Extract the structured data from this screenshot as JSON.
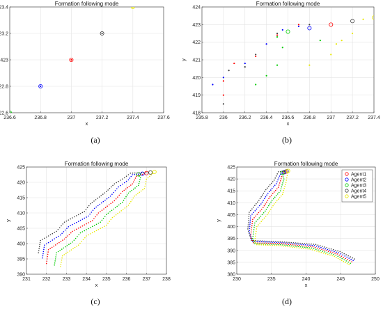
{
  "chart_data": [
    {
      "panel": "(a)",
      "type": "scatter",
      "title": "Formation following mode",
      "xlabel": "x",
      "ylabel": "y",
      "xlim": [
        236.6,
        237.6
      ],
      "ylim": [
        422.6,
        423.4
      ],
      "xticks": [
        236.6,
        236.8,
        237,
        237.2,
        237.4,
        237.6
      ],
      "yticks": [
        422.6,
        422.8,
        423,
        423.2,
        423.4
      ],
      "grid": true,
      "series": [
        {
          "color": "#ff0000",
          "points": [
            [
              237.0,
              423.0
            ]
          ]
        },
        {
          "color": "#0000ff",
          "points": [
            [
              236.8,
              422.8
            ]
          ]
        },
        {
          "color": "#00cc00",
          "points": [
            [
              236.6,
              422.6
            ]
          ]
        },
        {
          "color": "#404040",
          "points": [
            [
              237.2,
              423.2
            ]
          ]
        },
        {
          "color": "#e8e800",
          "points": [
            [
              237.4,
              423.4
            ]
          ]
        }
      ]
    },
    {
      "panel": "(b)",
      "type": "scatter",
      "title": "Formation following mode",
      "xlabel": "x",
      "ylabel": "y",
      "xlim": [
        235.8,
        237.4
      ],
      "ylim": [
        418,
        424
      ],
      "xticks": [
        235.8,
        236,
        236.2,
        236.4,
        236.6,
        236.8,
        237,
        237.2,
        237.4
      ],
      "yticks": [
        418,
        419,
        420,
        421,
        422,
        423,
        424
      ],
      "grid": true,
      "series": [
        {
          "color": "#ff0000",
          "points": [
            [
              236.0,
              419.0
            ],
            [
              236.0,
              419.8
            ],
            [
              236.1,
              420.8
            ],
            [
              236.3,
              421.2
            ],
            [
              236.5,
              422.4
            ],
            [
              236.7,
              423.0
            ]
          ],
          "head": [
            237.0,
            423.0
          ]
        },
        {
          "color": "#0000ff",
          "points": [
            [
              235.9,
              419.6
            ],
            [
              236.0,
              420.0
            ],
            [
              236.2,
              420.8
            ],
            [
              236.4,
              421.9
            ],
            [
              236.55,
              422.7
            ],
            [
              236.7,
              422.9
            ]
          ],
          "head": [
            236.8,
            422.8
          ]
        },
        {
          "color": "#00cc00",
          "points": [
            [
              236.3,
              419.6
            ],
            [
              236.4,
              420.1
            ],
            [
              236.5,
              420.7
            ],
            [
              236.55,
              421.7
            ],
            [
              236.5,
              422.3
            ],
            [
              236.9,
              422.1
            ]
          ],
          "head": [
            236.6,
            422.6
          ]
        },
        {
          "color": "#404040",
          "points": [
            [
              236.0,
              418.5
            ],
            [
              236.05,
              420.4
            ],
            [
              236.2,
              420.6
            ],
            [
              236.3,
              421.3
            ],
            [
              236.5,
              422.5
            ],
            [
              236.8,
              423.0
            ]
          ],
          "head": [
            237.2,
            423.2
          ]
        },
        {
          "color": "#e8e800",
          "points": [
            [
              236.8,
              420.7
            ],
            [
              237.0,
              421.3
            ],
            [
              237.05,
              421.9
            ],
            [
              237.1,
              422.1
            ],
            [
              237.2,
              422.5
            ],
            [
              237.3,
              423.3
            ]
          ],
          "head": [
            237.4,
            423.4
          ]
        }
      ]
    },
    {
      "panel": "(c)",
      "type": "scatter",
      "title": "Formation following mode",
      "xlabel": "x",
      "ylabel": "y",
      "xlim": [
        231,
        238
      ],
      "ylim": [
        390,
        425
      ],
      "xticks": [
        231,
        232,
        233,
        234,
        235,
        236,
        237,
        238
      ],
      "yticks": [
        390,
        395,
        400,
        405,
        410,
        415,
        420,
        425
      ],
      "grid": true,
      "series": [
        {
          "color": "#ff0000",
          "head": [
            237.0,
            423.0
          ],
          "waypoints": [
            [
              232.0,
              393.5
            ],
            [
              232.1,
              398.0
            ],
            [
              232.9,
              401.5
            ],
            [
              233.3,
              404.0
            ],
            [
              234.3,
              407.5
            ],
            [
              234.6,
              410.0
            ],
            [
              235.4,
              414.0
            ],
            [
              235.8,
              417.0
            ],
            [
              236.3,
              419.5
            ],
            [
              236.5,
              422.0
            ],
            [
              237.0,
              423.0
            ]
          ]
        },
        {
          "color": "#0000ff",
          "head": [
            236.8,
            422.8
          ],
          "waypoints": [
            [
              231.8,
              395.3
            ],
            [
              231.9,
              399.5
            ],
            [
              232.7,
              402.8
            ],
            [
              233.1,
              405.5
            ],
            [
              234.1,
              409.0
            ],
            [
              234.4,
              411.5
            ],
            [
              235.2,
              415.5
            ],
            [
              235.6,
              418.5
            ],
            [
              236.1,
              420.8
            ],
            [
              236.3,
              422.5
            ],
            [
              236.8,
              422.8
            ]
          ]
        },
        {
          "color": "#00cc00",
          "head": [
            236.6,
            422.6
          ],
          "waypoints": [
            [
              232.4,
              393.0
            ],
            [
              232.5,
              397.0
            ],
            [
              233.3,
              400.5
            ],
            [
              233.7,
              403.5
            ],
            [
              234.7,
              407.0
            ],
            [
              235.0,
              409.5
            ],
            [
              235.8,
              413.5
            ],
            [
              236.1,
              416.5
            ],
            [
              236.6,
              419.0
            ],
            [
              236.7,
              421.5
            ],
            [
              236.6,
              422.6
            ]
          ]
        },
        {
          "color": "#404040",
          "head": [
            237.2,
            423.2
          ],
          "waypoints": [
            [
              231.6,
              397.0
            ],
            [
              231.7,
              401.0
            ],
            [
              232.5,
              404.0
            ],
            [
              232.9,
              407.0
            ],
            [
              233.9,
              410.5
            ],
            [
              234.2,
              413.0
            ],
            [
              235.0,
              417.0
            ],
            [
              235.4,
              419.5
            ],
            [
              235.9,
              421.5
            ],
            [
              236.2,
              423.0
            ],
            [
              237.2,
              423.2
            ]
          ]
        },
        {
          "color": "#e8e800",
          "head": [
            237.4,
            423.4
          ],
          "waypoints": [
            [
              232.7,
              392.5
            ],
            [
              232.8,
              396.0
            ],
            [
              233.6,
              399.5
            ],
            [
              234.0,
              402.5
            ],
            [
              235.0,
              406.0
            ],
            [
              235.3,
              408.5
            ],
            [
              236.1,
              412.5
            ],
            [
              236.4,
              415.5
            ],
            [
              236.9,
              418.0
            ],
            [
              237.0,
              421.0
            ],
            [
              237.4,
              423.4
            ]
          ]
        }
      ]
    },
    {
      "panel": "(d)",
      "type": "scatter",
      "title": "Formation following mode",
      "xlabel": "x",
      "ylabel": "y",
      "xlim": [
        230,
        250
      ],
      "ylim": [
        380,
        425
      ],
      "xticks": [
        230,
        235,
        240,
        245,
        250
      ],
      "yticks": [
        380,
        385,
        390,
        395,
        400,
        405,
        410,
        415,
        420,
        425
      ],
      "grid": true,
      "legend_position": "top-right",
      "series": [
        {
          "name": "Agent1",
          "color": "#ff0000",
          "head": [
            237.0,
            423.0
          ],
          "waypoints": [
            [
              246.6,
              385.2
            ],
            [
              244.5,
              388.5
            ],
            [
              241.0,
              391.5
            ],
            [
              236.5,
              392.8
            ],
            [
              232.4,
              393.2
            ],
            [
              232.0,
              396.0
            ],
            [
              232.3,
              403.0
            ],
            [
              233.8,
              408.0
            ],
            [
              234.8,
              412.5
            ],
            [
              236.0,
              416.5
            ],
            [
              236.5,
              421.0
            ],
            [
              237.0,
              423.0
            ]
          ]
        },
        {
          "name": "Agent2",
          "color": "#0000ff",
          "head": [
            236.8,
            422.8
          ],
          "waypoints": [
            [
              246.8,
              385.8
            ],
            [
              244.7,
              389.0
            ],
            [
              241.2,
              392.0
            ],
            [
              236.7,
              393.2
            ],
            [
              232.3,
              393.8
            ],
            [
              231.8,
              397.5
            ],
            [
              232.0,
              404.5
            ],
            [
              233.5,
              409.5
            ],
            [
              234.5,
              414.0
            ],
            [
              235.7,
              418.0
            ],
            [
              236.3,
              422.0
            ],
            [
              236.8,
              422.8
            ]
          ]
        },
        {
          "name": "Agent3",
          "color": "#00cc00",
          "head": [
            236.6,
            422.6
          ],
          "waypoints": [
            [
              246.4,
              384.6
            ],
            [
              244.3,
              388.0
            ],
            [
              240.8,
              391.0
            ],
            [
              236.3,
              392.4
            ],
            [
              232.6,
              392.8
            ],
            [
              232.3,
              395.0
            ],
            [
              232.6,
              401.5
            ],
            [
              234.1,
              406.5
            ],
            [
              235.1,
              411.0
            ],
            [
              236.3,
              415.0
            ],
            [
              236.8,
              420.0
            ],
            [
              236.6,
              422.6
            ]
          ]
        },
        {
          "name": "Agent4",
          "color": "#404040",
          "head": [
            237.2,
            423.2
          ],
          "waypoints": [
            [
              247.0,
              386.4
            ],
            [
              244.9,
              389.5
            ],
            [
              241.4,
              392.5
            ],
            [
              236.9,
              393.5
            ],
            [
              232.1,
              394.2
            ],
            [
              231.6,
              399.0
            ],
            [
              231.8,
              406.0
            ],
            [
              233.2,
              411.0
            ],
            [
              234.2,
              415.5
            ],
            [
              235.4,
              419.5
            ],
            [
              236.0,
              423.0
            ],
            [
              237.2,
              423.2
            ]
          ]
        },
        {
          "name": "Agent5",
          "color": "#e8e800",
          "head": [
            237.4,
            423.4
          ],
          "waypoints": [
            [
              246.2,
              384.0
            ],
            [
              244.1,
              387.5
            ],
            [
              240.6,
              390.5
            ],
            [
              236.1,
              392.0
            ],
            [
              232.9,
              392.4
            ],
            [
              232.6,
              394.0
            ],
            [
              232.9,
              400.0
            ],
            [
              234.4,
              405.0
            ],
            [
              235.4,
              409.5
            ],
            [
              236.6,
              413.5
            ],
            [
              237.1,
              418.5
            ],
            [
              237.4,
              423.4
            ]
          ]
        }
      ]
    }
  ]
}
